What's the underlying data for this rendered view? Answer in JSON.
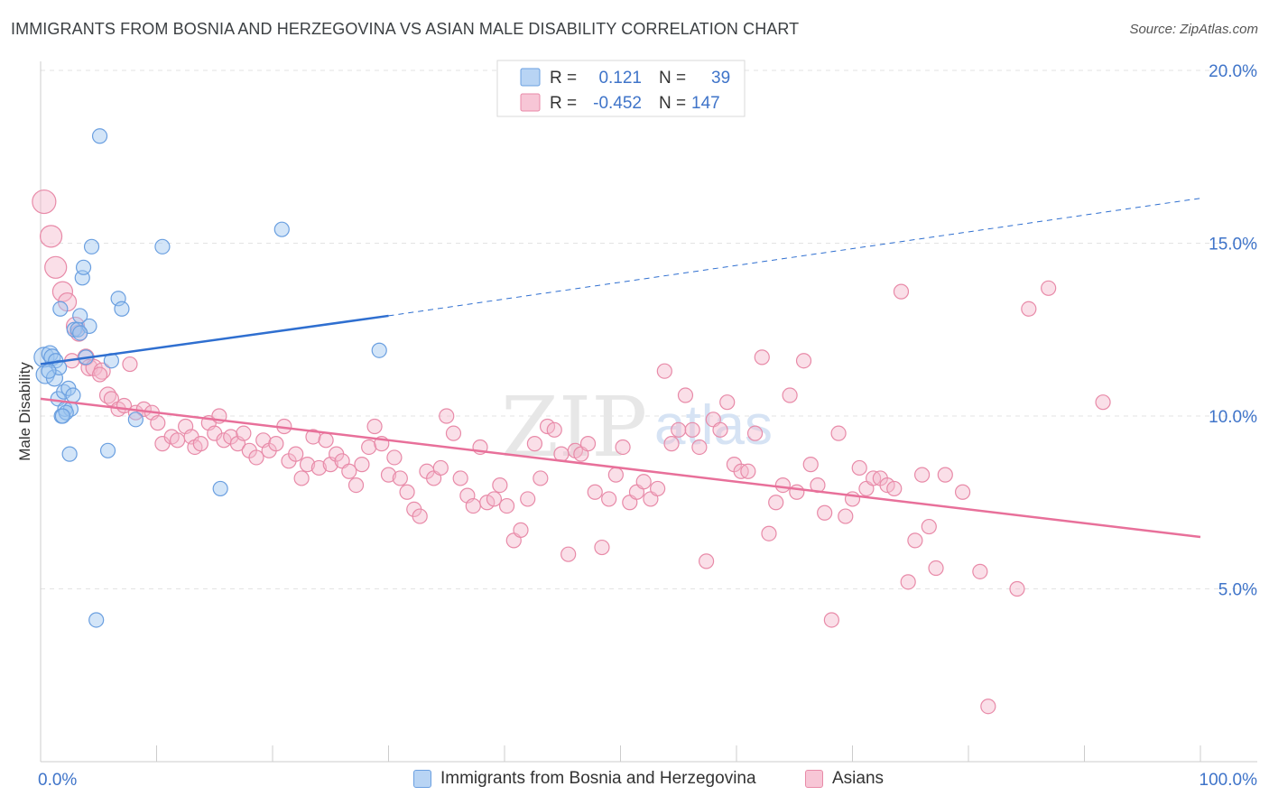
{
  "title": "IMMIGRANTS FROM BOSNIA AND HERZEGOVINA VS ASIAN MALE DISABILITY CORRELATION CHART",
  "source": "Source: ZipAtlas.com",
  "watermark": {
    "zip": "ZIP",
    "atlas": "atlas"
  },
  "colors": {
    "blue_fill": "#9ec5f0",
    "blue_stroke": "#6a9fe0",
    "blue_line": "#2f6fd0",
    "pink_fill": "#f5b8cc",
    "pink_stroke": "#e88aa8",
    "pink_line": "#e8709a",
    "axis_label": "#3f74c9",
    "grid": "#e3e3e3"
  },
  "legend": {
    "rows": [
      {
        "r_label": "R =",
        "r_value": "0.121",
        "n_label": "N =",
        "n_value": "39"
      },
      {
        "r_label": "R =",
        "r_value": "-0.452",
        "n_label": "N =",
        "n_value": "147"
      }
    ]
  },
  "bottom_legend": {
    "series1": "Immigrants from Bosnia and Herzegovina",
    "series2": "Asians"
  },
  "chart_data": {
    "type": "scatter",
    "title": "IMMIGRANTS FROM BOSNIA AND HERZEGOVINA VS ASIAN MALE DISABILITY CORRELATION CHART",
    "xlabel": "",
    "ylabel": "Male Disability",
    "xlim": [
      0,
      100
    ],
    "ylim": [
      0,
      20
    ],
    "x_tick_labels": [
      "0.0%",
      "100.0%"
    ],
    "y_ticks": [
      5,
      10,
      15,
      20
    ],
    "y_tick_labels": [
      "5.0%",
      "10.0%",
      "15.0%",
      "20.0%"
    ],
    "grid": true,
    "series": [
      {
        "name": "Immigrants from Bosnia and Herzegovina",
        "R": 0.121,
        "N": 39,
        "trend": {
          "x0": 0,
          "y0": 11.5,
          "x1": 30,
          "y1": 12.9,
          "dashed_to_x": 100,
          "dashed_to_y": 16.3
        },
        "points": [
          [
            0.3,
            11.7,
            11
          ],
          [
            0.4,
            11.2,
            10
          ],
          [
            0.8,
            11.8,
            9
          ],
          [
            1.0,
            11.7,
            9
          ],
          [
            1.2,
            11.1,
            9
          ],
          [
            1.3,
            11.6,
            8
          ],
          [
            1.5,
            10.5,
            8
          ],
          [
            1.6,
            11.4,
            8
          ],
          [
            1.8,
            10.0,
            8
          ],
          [
            2.0,
            10.7,
            8
          ],
          [
            2.1,
            10.2,
            8
          ],
          [
            2.4,
            10.8,
            8
          ],
          [
            2.6,
            10.2,
            8
          ],
          [
            2.8,
            10.6,
            8
          ],
          [
            2.9,
            12.5,
            8
          ],
          [
            3.2,
            12.5,
            8
          ],
          [
            3.4,
            12.9,
            8
          ],
          [
            3.6,
            14.0,
            8
          ],
          [
            3.7,
            14.3,
            8
          ],
          [
            3.9,
            11.7,
            8
          ],
          [
            4.2,
            12.6,
            8
          ],
          [
            4.4,
            14.9,
            8
          ],
          [
            5.1,
            18.1,
            8
          ],
          [
            6.1,
            11.6,
            8
          ],
          [
            6.7,
            13.4,
            8
          ],
          [
            7.0,
            13.1,
            8
          ],
          [
            8.2,
            9.9,
            8
          ],
          [
            10.5,
            14.9,
            8
          ],
          [
            15.5,
            7.9,
            8
          ],
          [
            20.8,
            15.4,
            8
          ],
          [
            29.2,
            11.9,
            8
          ],
          [
            2.5,
            8.9,
            8
          ],
          [
            5.8,
            9.0,
            8
          ],
          [
            4.8,
            4.1,
            8
          ],
          [
            1.7,
            13.1,
            8
          ],
          [
            3.4,
            12.4,
            8
          ],
          [
            0.7,
            11.3,
            8
          ],
          [
            2.2,
            10.1,
            8
          ],
          [
            1.9,
            10.0,
            8
          ]
        ]
      },
      {
        "name": "Asians",
        "R": -0.452,
        "N": 147,
        "trend": {
          "x0": 0,
          "y0": 10.5,
          "x1": 100,
          "y1": 6.5
        },
        "points": [
          [
            0.3,
            16.2,
            13
          ],
          [
            0.9,
            15.2,
            12
          ],
          [
            1.3,
            14.3,
            12
          ],
          [
            1.9,
            13.6,
            11
          ],
          [
            2.3,
            13.3,
            10
          ],
          [
            3.0,
            12.6,
            10
          ],
          [
            3.3,
            12.4,
            9
          ],
          [
            3.9,
            11.7,
            9
          ],
          [
            4.2,
            11.4,
            9
          ],
          [
            4.6,
            11.4,
            9
          ],
          [
            5.3,
            11.3,
            9
          ],
          [
            5.8,
            10.6,
            9
          ],
          [
            6.1,
            10.5,
            8
          ],
          [
            6.7,
            10.2,
            8
          ],
          [
            7.2,
            10.3,
            8
          ],
          [
            7.7,
            11.5,
            8
          ],
          [
            8.2,
            10.1,
            8
          ],
          [
            8.9,
            10.2,
            8
          ],
          [
            9.6,
            10.1,
            8
          ],
          [
            10.1,
            9.8,
            8
          ],
          [
            10.5,
            9.2,
            8
          ],
          [
            11.3,
            9.4,
            8
          ],
          [
            11.8,
            9.3,
            8
          ],
          [
            12.5,
            9.7,
            8
          ],
          [
            13.0,
            9.4,
            8
          ],
          [
            13.3,
            9.1,
            8
          ],
          [
            13.8,
            9.2,
            8
          ],
          [
            14.5,
            9.8,
            8
          ],
          [
            15.0,
            9.5,
            8
          ],
          [
            15.4,
            10.0,
            8
          ],
          [
            15.8,
            9.3,
            8
          ],
          [
            16.4,
            9.4,
            8
          ],
          [
            17.0,
            9.2,
            8
          ],
          [
            17.5,
            9.5,
            8
          ],
          [
            18.0,
            9.0,
            8
          ],
          [
            18.6,
            8.8,
            8
          ],
          [
            19.2,
            9.3,
            8
          ],
          [
            19.7,
            9.0,
            8
          ],
          [
            20.3,
            9.2,
            8
          ],
          [
            21.0,
            9.7,
            8
          ],
          [
            21.4,
            8.7,
            8
          ],
          [
            22.0,
            8.9,
            8
          ],
          [
            22.5,
            8.2,
            8
          ],
          [
            23.0,
            8.6,
            8
          ],
          [
            23.5,
            9.4,
            8
          ],
          [
            24.0,
            8.5,
            8
          ],
          [
            24.6,
            9.3,
            8
          ],
          [
            25.0,
            8.6,
            8
          ],
          [
            25.5,
            8.9,
            8
          ],
          [
            26.0,
            8.7,
            8
          ],
          [
            26.6,
            8.4,
            8
          ],
          [
            27.2,
            8.0,
            8
          ],
          [
            27.7,
            8.6,
            8
          ],
          [
            28.3,
            9.1,
            8
          ],
          [
            28.8,
            9.7,
            8
          ],
          [
            29.4,
            9.2,
            8
          ],
          [
            30.0,
            8.3,
            8
          ],
          [
            30.5,
            8.8,
            8
          ],
          [
            31.0,
            8.2,
            8
          ],
          [
            31.6,
            7.8,
            8
          ],
          [
            32.2,
            7.3,
            8
          ],
          [
            32.7,
            7.1,
            8
          ],
          [
            33.3,
            8.4,
            8
          ],
          [
            33.9,
            8.2,
            8
          ],
          [
            34.5,
            8.5,
            8
          ],
          [
            35.0,
            10.0,
            8
          ],
          [
            35.6,
            9.5,
            8
          ],
          [
            36.2,
            8.2,
            8
          ],
          [
            36.8,
            7.7,
            8
          ],
          [
            37.3,
            7.4,
            8
          ],
          [
            37.9,
            9.1,
            8
          ],
          [
            38.5,
            7.5,
            8
          ],
          [
            39.1,
            7.6,
            8
          ],
          [
            39.6,
            8.0,
            8
          ],
          [
            40.2,
            7.4,
            8
          ],
          [
            40.8,
            6.4,
            8
          ],
          [
            41.4,
            6.7,
            8
          ],
          [
            42.0,
            7.6,
            8
          ],
          [
            42.6,
            9.2,
            8
          ],
          [
            43.1,
            8.2,
            8
          ],
          [
            43.7,
            9.7,
            8
          ],
          [
            44.3,
            9.6,
            8
          ],
          [
            44.9,
            8.9,
            8
          ],
          [
            45.5,
            6.0,
            8
          ],
          [
            46.1,
            9.0,
            8
          ],
          [
            46.6,
            8.9,
            8
          ],
          [
            47.2,
            9.2,
            8
          ],
          [
            47.8,
            7.8,
            8
          ],
          [
            48.4,
            6.2,
            8
          ],
          [
            49.0,
            7.6,
            8
          ],
          [
            49.6,
            8.3,
            8
          ],
          [
            50.2,
            9.1,
            8
          ],
          [
            50.8,
            7.5,
            8
          ],
          [
            51.4,
            7.8,
            8
          ],
          [
            52.0,
            8.1,
            8
          ],
          [
            52.6,
            7.6,
            8
          ],
          [
            53.2,
            7.9,
            8
          ],
          [
            53.8,
            11.3,
            8
          ],
          [
            54.4,
            9.2,
            8
          ],
          [
            55.0,
            9.6,
            8
          ],
          [
            55.6,
            10.6,
            8
          ],
          [
            56.2,
            9.6,
            8
          ],
          [
            56.8,
            9.1,
            8
          ],
          [
            57.4,
            5.8,
            8
          ],
          [
            58.0,
            9.9,
            8
          ],
          [
            58.6,
            9.6,
            8
          ],
          [
            59.2,
            10.4,
            8
          ],
          [
            59.8,
            8.6,
            8
          ],
          [
            60.4,
            8.4,
            8
          ],
          [
            61.0,
            8.4,
            8
          ],
          [
            61.6,
            9.5,
            8
          ],
          [
            62.2,
            11.7,
            8
          ],
          [
            62.8,
            6.6,
            8
          ],
          [
            63.4,
            7.5,
            8
          ],
          [
            64.0,
            8.0,
            8
          ],
          [
            64.6,
            10.6,
            8
          ],
          [
            65.2,
            7.8,
            8
          ],
          [
            65.8,
            11.6,
            8
          ],
          [
            66.4,
            8.6,
            8
          ],
          [
            67.0,
            8.0,
            8
          ],
          [
            67.6,
            7.2,
            8
          ],
          [
            68.2,
            4.1,
            8
          ],
          [
            68.8,
            9.5,
            8
          ],
          [
            69.4,
            7.1,
            8
          ],
          [
            70.0,
            7.6,
            8
          ],
          [
            70.6,
            8.5,
            8
          ],
          [
            71.2,
            7.9,
            8
          ],
          [
            71.8,
            8.2,
            8
          ],
          [
            72.4,
            8.2,
            8
          ],
          [
            73.0,
            8.0,
            8
          ],
          [
            73.6,
            7.9,
            8
          ],
          [
            74.2,
            13.6,
            8
          ],
          [
            74.8,
            5.2,
            8
          ],
          [
            75.4,
            6.4,
            8
          ],
          [
            76.0,
            8.3,
            8
          ],
          [
            76.6,
            6.8,
            8
          ],
          [
            77.2,
            5.6,
            8
          ],
          [
            78.0,
            8.3,
            8
          ],
          [
            79.5,
            7.8,
            8
          ],
          [
            81.0,
            5.5,
            8
          ],
          [
            81.7,
            1.6,
            8
          ],
          [
            84.2,
            5.0,
            8
          ],
          [
            85.2,
            13.1,
            8
          ],
          [
            86.9,
            13.7,
            8
          ],
          [
            91.6,
            10.4,
            8
          ],
          [
            2.7,
            11.6,
            8
          ],
          [
            5.1,
            11.2,
            8
          ]
        ]
      }
    ]
  }
}
